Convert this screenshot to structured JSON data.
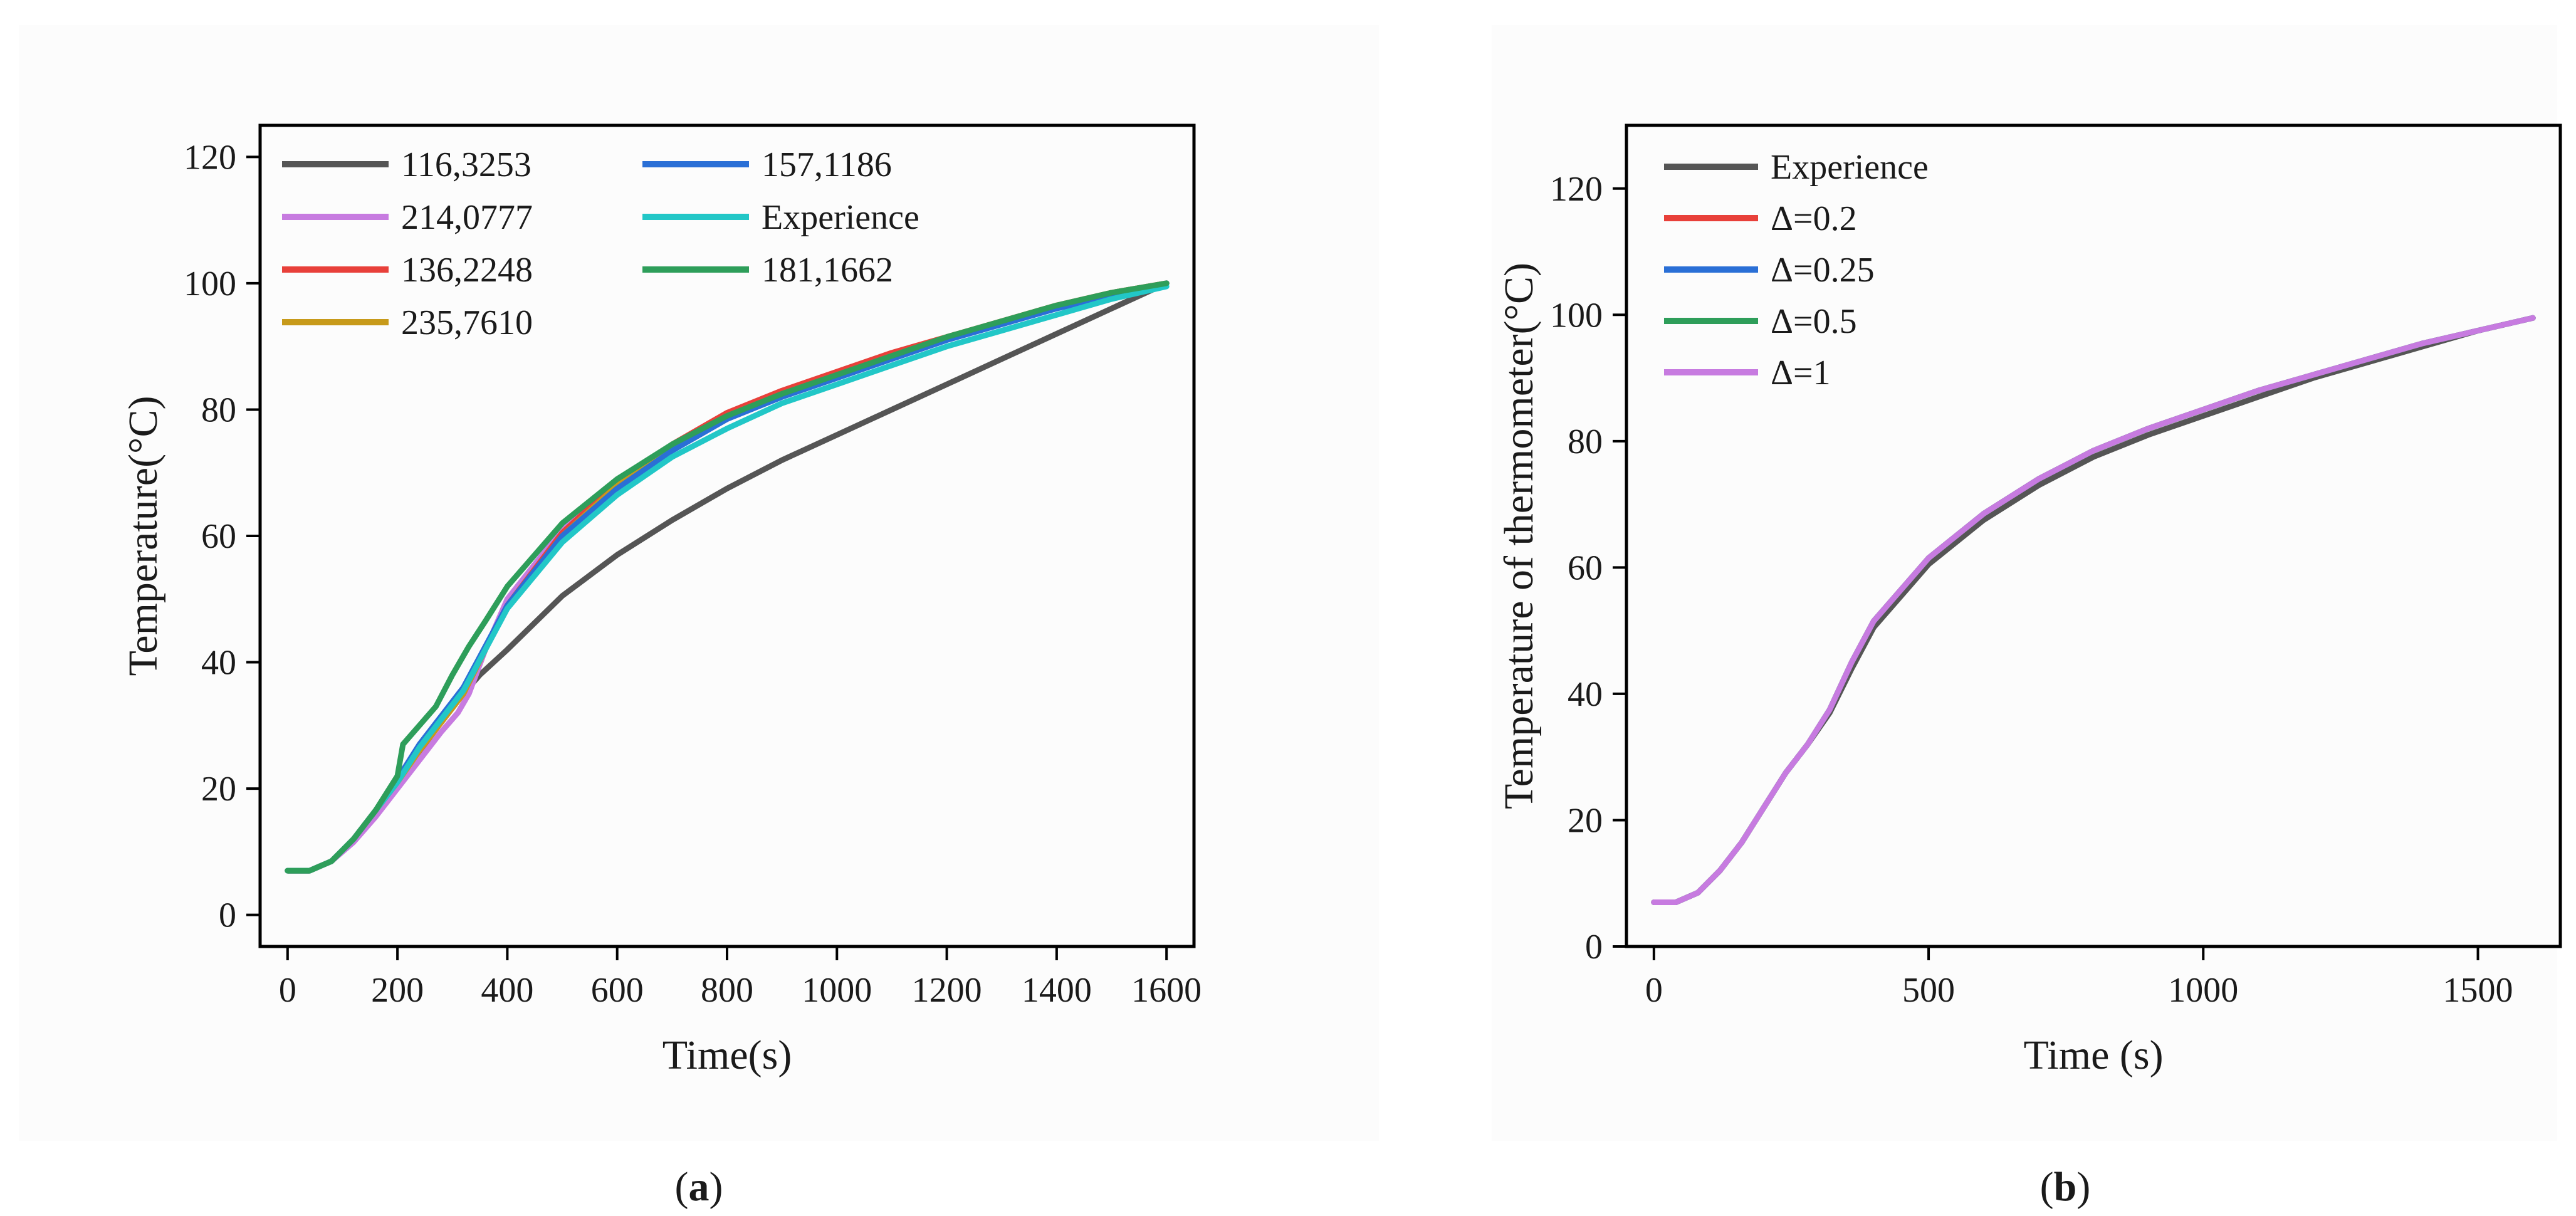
{
  "chart_data": [
    {
      "type": "line",
      "panel": "a",
      "caption": "(a)",
      "caption_letter": "a",
      "xlabel": "Time(s)",
      "ylabel": "Temperature(°C)",
      "xlim": [
        -50,
        1650
      ],
      "ylim": [
        -5,
        125
      ],
      "xticks": [
        0,
        200,
        400,
        600,
        800,
        1000,
        1200,
        1400,
        1600
      ],
      "yticks": [
        0,
        20,
        40,
        60,
        80,
        100,
        120
      ],
      "legend_position": "top-left, two columns",
      "series": [
        {
          "name": "116,3253",
          "color": "#555555",
          "x": [
            0,
            40,
            80,
            120,
            160,
            200,
            250,
            300,
            350,
            400,
            500,
            600,
            700,
            800,
            900,
            1000,
            1100,
            1200,
            1300,
            1400,
            1500,
            1600
          ],
          "y": [
            7,
            7,
            8.5,
            12,
            16.5,
            21,
            27,
            33,
            38,
            42,
            50.5,
            57,
            62.5,
            67.5,
            72,
            76,
            80,
            84,
            88,
            92,
            96,
            100
          ]
        },
        {
          "name": "214,0777",
          "color": "#c77be0",
          "x": [
            0,
            40,
            80,
            120,
            160,
            200,
            240,
            280,
            310,
            330,
            360,
            400,
            500,
            600,
            700,
            800,
            900,
            1000,
            1100,
            1200,
            1300,
            1400,
            1500,
            1600
          ],
          "y": [
            7,
            7,
            8.5,
            11.5,
            15.5,
            20,
            24.5,
            29,
            32,
            35,
            42,
            50,
            61,
            68.5,
            74,
            78.5,
            82.5,
            85.5,
            88.5,
            91.5,
            94,
            96.5,
            98.5,
            100
          ]
        },
        {
          "name": "136,2248",
          "color": "#e8403a",
          "x": [
            0,
            40,
            80,
            120,
            160,
            200,
            240,
            280,
            320,
            360,
            400,
            500,
            600,
            700,
            800,
            900,
            1000,
            1100,
            1200,
            1300,
            1400,
            1500,
            1600
          ],
          "y": [
            7,
            7,
            8.5,
            12,
            16.5,
            21.5,
            26,
            30.5,
            35,
            42,
            49,
            60.5,
            68.5,
            74.5,
            79.5,
            83,
            86,
            89,
            91.5,
            94,
            96.5,
            98.5,
            100
          ]
        },
        {
          "name": "235,7610",
          "color": "#c79a1a",
          "x": [
            0,
            40,
            80,
            120,
            160,
            200,
            240,
            280,
            320,
            360,
            400,
            500,
            600,
            700,
            800,
            900,
            1000,
            1100,
            1200,
            1300,
            1400,
            1500,
            1600
          ],
          "y": [
            7,
            7,
            8.5,
            12,
            16.5,
            21,
            26,
            30.5,
            35,
            42,
            49,
            60,
            68,
            74,
            79,
            82.5,
            85.5,
            88.5,
            91.5,
            94,
            96.5,
            98.5,
            100
          ]
        },
        {
          "name": "157,1186",
          "color": "#2a6fd6",
          "x": [
            0,
            40,
            80,
            120,
            160,
            200,
            240,
            280,
            320,
            360,
            400,
            500,
            600,
            700,
            800,
            900,
            1000,
            1100,
            1200,
            1300,
            1400,
            1500,
            1600
          ],
          "y": [
            7,
            7,
            8.5,
            12,
            16.5,
            21.5,
            27,
            31.5,
            36,
            42.5,
            49,
            60,
            67.5,
            73.5,
            78.5,
            82,
            85,
            88,
            91,
            93.5,
            96,
            98,
            100
          ]
        },
        {
          "name": "Experience",
          "color": "#22c7c7",
          "x": [
            0,
            40,
            80,
            120,
            160,
            200,
            240,
            280,
            320,
            360,
            400,
            500,
            600,
            700,
            800,
            900,
            1000,
            1100,
            1200,
            1300,
            1400,
            1500,
            1600
          ],
          "y": [
            7,
            7,
            8.5,
            12,
            16.5,
            21,
            26.5,
            31,
            35.5,
            42,
            48.5,
            59,
            66.5,
            72.5,
            77,
            81,
            84,
            87,
            90,
            92.5,
            95,
            97.5,
            99.5
          ]
        },
        {
          "name": "181,1662",
          "color": "#2e9e5a",
          "x": [
            0,
            40,
            80,
            120,
            160,
            200,
            210,
            240,
            270,
            300,
            330,
            360,
            400,
            500,
            600,
            700,
            800,
            900,
            1000,
            1100,
            1200,
            1300,
            1400,
            1500,
            1600
          ],
          "y": [
            7,
            7,
            8.5,
            12,
            16.5,
            22,
            27,
            30,
            33,
            38,
            42.5,
            46.5,
            52,
            62,
            69,
            74.5,
            79,
            82.5,
            85.5,
            88.5,
            91.5,
            94,
            96.5,
            98.5,
            100
          ]
        }
      ]
    },
    {
      "type": "line",
      "panel": "b",
      "caption": "(b)",
      "caption_letter": "b",
      "xlabel": "Time (s)",
      "ylabel": "Temperature of thermometer(°C)",
      "xlim": [
        -50,
        1650
      ],
      "ylim": [
        0,
        130
      ],
      "xticks": [
        0,
        500,
        1000,
        1500
      ],
      "yticks": [
        0,
        20,
        40,
        60,
        80,
        100,
        120
      ],
      "legend_position": "top-left",
      "series": [
        {
          "name": "Experience",
          "color": "#555555",
          "x": [
            0,
            40,
            80,
            120,
            160,
            200,
            240,
            280,
            320,
            360,
            400,
            500,
            600,
            700,
            800,
            900,
            1000,
            1100,
            1200,
            1300,
            1400,
            1500,
            1600
          ],
          "y": [
            7,
            7,
            8.5,
            12,
            16.5,
            22,
            27.5,
            32,
            37,
            44,
            50.5,
            60.5,
            67.5,
            73,
            77.5,
            81,
            84,
            87,
            90,
            92.5,
            95,
            97.5,
            99.5
          ]
        },
        {
          "name": "Δ=0.2",
          "color": "#e8403a",
          "x": [
            0,
            40,
            80,
            120,
            160,
            200,
            240,
            280,
            320,
            360,
            400,
            500,
            600,
            700,
            800,
            900,
            1000,
            1100,
            1200,
            1300,
            1400,
            1500,
            1600
          ],
          "y": [
            7,
            7,
            8.5,
            12,
            16.5,
            22,
            27.5,
            32,
            37.5,
            45,
            51.5,
            61.5,
            68.5,
            74,
            78.5,
            82,
            85,
            88,
            90.5,
            93,
            95.5,
            97.5,
            99.5
          ]
        },
        {
          "name": "Δ=0.25",
          "color": "#2a6fd6",
          "x": [
            0,
            40,
            80,
            120,
            160,
            200,
            240,
            280,
            320,
            360,
            400,
            500,
            600,
            700,
            800,
            900,
            1000,
            1100,
            1200,
            1300,
            1400,
            1500,
            1600
          ],
          "y": [
            7,
            7,
            8.5,
            12,
            16.5,
            22,
            27.5,
            32,
            37.5,
            45,
            51.5,
            61.5,
            68.5,
            74,
            78.5,
            82,
            85,
            88,
            90.5,
            93,
            95.5,
            97.5,
            99.5
          ]
        },
        {
          "name": "Δ=0.5",
          "color": "#2e9e5a",
          "x": [
            0,
            40,
            80,
            120,
            160,
            200,
            240,
            280,
            320,
            360,
            400,
            500,
            600,
            700,
            800,
            900,
            1000,
            1100,
            1200,
            1300,
            1400,
            1500,
            1600
          ],
          "y": [
            7,
            7,
            8.5,
            12,
            16.5,
            22,
            27.5,
            32,
            37.5,
            45,
            51.5,
            61.5,
            68.5,
            74,
            78.5,
            82,
            85,
            88,
            90.5,
            93,
            95.5,
            97.5,
            99.5
          ]
        },
        {
          "name": "Δ=1",
          "color": "#c77be0",
          "x": [
            0,
            40,
            80,
            120,
            160,
            200,
            240,
            280,
            320,
            360,
            400,
            500,
            600,
            700,
            800,
            900,
            1000,
            1100,
            1200,
            1300,
            1400,
            1500,
            1600
          ],
          "y": [
            7,
            7,
            8.5,
            12,
            16.5,
            22,
            27.5,
            32,
            37.5,
            45,
            51.5,
            61.5,
            68.5,
            74,
            78.5,
            82,
            85,
            88,
            90.5,
            93,
            95.5,
            97.5,
            99.5
          ]
        }
      ]
    }
  ]
}
